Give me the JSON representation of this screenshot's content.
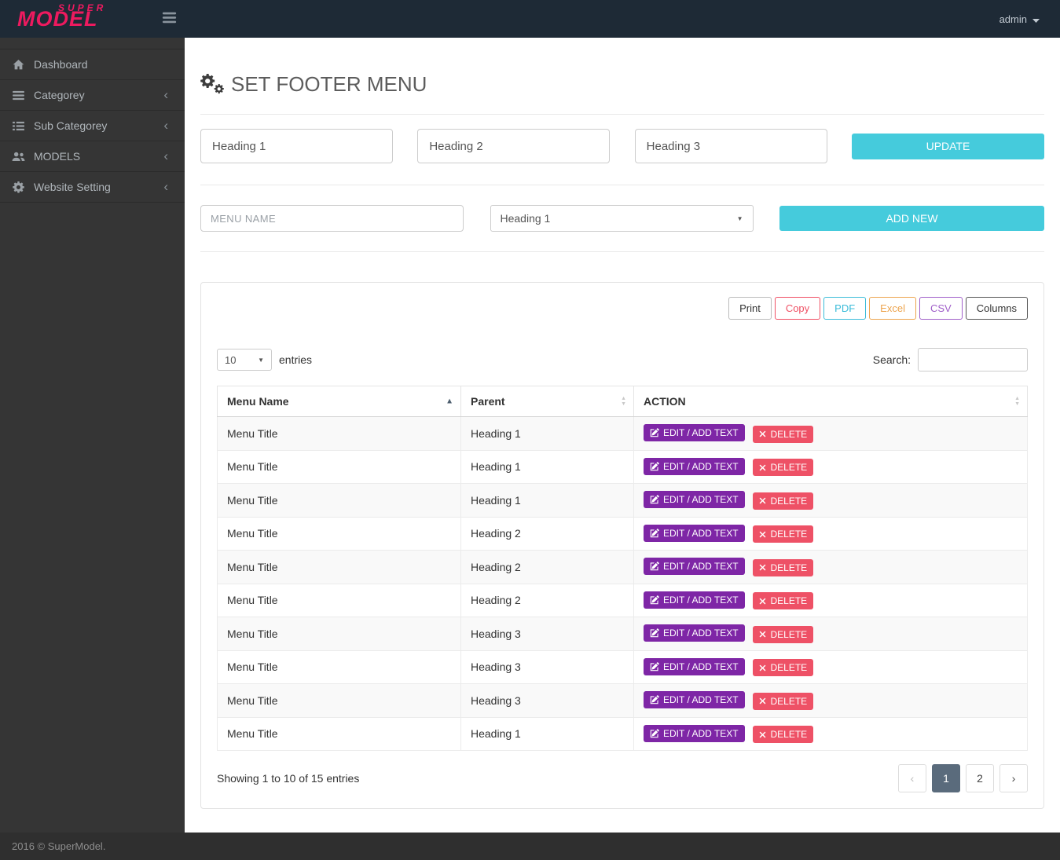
{
  "topbar": {
    "logo_super": "SUPER",
    "logo_model": "MODEL",
    "user_label": "admin"
  },
  "sidebar": {
    "items": [
      {
        "label": "Dashboard",
        "icon": "home-icon",
        "has_submenu": false
      },
      {
        "label": "Categorey",
        "icon": "bars-icon",
        "has_submenu": true
      },
      {
        "label": "Sub Categorey",
        "icon": "list-icon",
        "has_submenu": true
      },
      {
        "label": "MODELS",
        "icon": "users-icon",
        "has_submenu": true
      },
      {
        "label": "Website Setting",
        "icon": "gears-icon",
        "has_submenu": true
      }
    ]
  },
  "page": {
    "title": "SET FOOTER MENU"
  },
  "heading_form": {
    "heading1_value": "Heading 1",
    "heading2_value": "Heading 2",
    "heading3_value": "Heading 3",
    "update_label": "UPDATE"
  },
  "add_form": {
    "menu_name_placeholder": "MENU NAME",
    "parent_selected": "Heading 1",
    "add_label": "ADD NEW"
  },
  "toolbar": {
    "buttons": [
      {
        "label": "Print",
        "color": "#333333",
        "border": "#bbbbbb"
      },
      {
        "label": "Copy",
        "color": "#ef5064",
        "border": "#ef5064"
      },
      {
        "label": "PDF",
        "color": "#3bbcd9",
        "border": "#3bbcd9"
      },
      {
        "label": "Excel",
        "color": "#eda44e",
        "border": "#eda44e"
      },
      {
        "label": "CSV",
        "color": "#a05fc9",
        "border": "#a05fc9"
      },
      {
        "label": "Columns",
        "color": "#333333",
        "border": "#555555"
      }
    ]
  },
  "table_controls": {
    "page_length": "10",
    "entries_label": "entries",
    "search_label": "Search:",
    "search_value": ""
  },
  "table": {
    "columns": [
      "Menu Name",
      "Parent",
      "ACTION"
    ],
    "edit_label": "EDIT / ADD TEXT",
    "delete_label": "DELETE",
    "rows": [
      {
        "menu_name": "Menu Title",
        "parent": "Heading 1"
      },
      {
        "menu_name": "Menu Title",
        "parent": "Heading 1"
      },
      {
        "menu_name": "Menu Title",
        "parent": "Heading 1"
      },
      {
        "menu_name": "Menu Title",
        "parent": "Heading 2"
      },
      {
        "menu_name": "Menu Title",
        "parent": "Heading 2"
      },
      {
        "menu_name": "Menu Title",
        "parent": "Heading 2"
      },
      {
        "menu_name": "Menu Title",
        "parent": "Heading 3"
      },
      {
        "menu_name": "Menu Title",
        "parent": "Heading 3"
      },
      {
        "menu_name": "Menu Title",
        "parent": "Heading 3"
      },
      {
        "menu_name": "Menu Title",
        "parent": "Heading 1"
      }
    ]
  },
  "table_footer": {
    "info": "Showing 1 to 10 of 15 entries",
    "prev": "‹",
    "next": "›",
    "pages": [
      "1",
      "2"
    ],
    "active_page": "1"
  },
  "footer": {
    "copyright": "2016 © SuperModel."
  },
  "colors": {
    "accent": "#45cbdc",
    "edit_button": "#7e26a6",
    "delete_button": "#ee5166",
    "active_page": "#5a6b7c",
    "logo": "#ed1a5f"
  }
}
